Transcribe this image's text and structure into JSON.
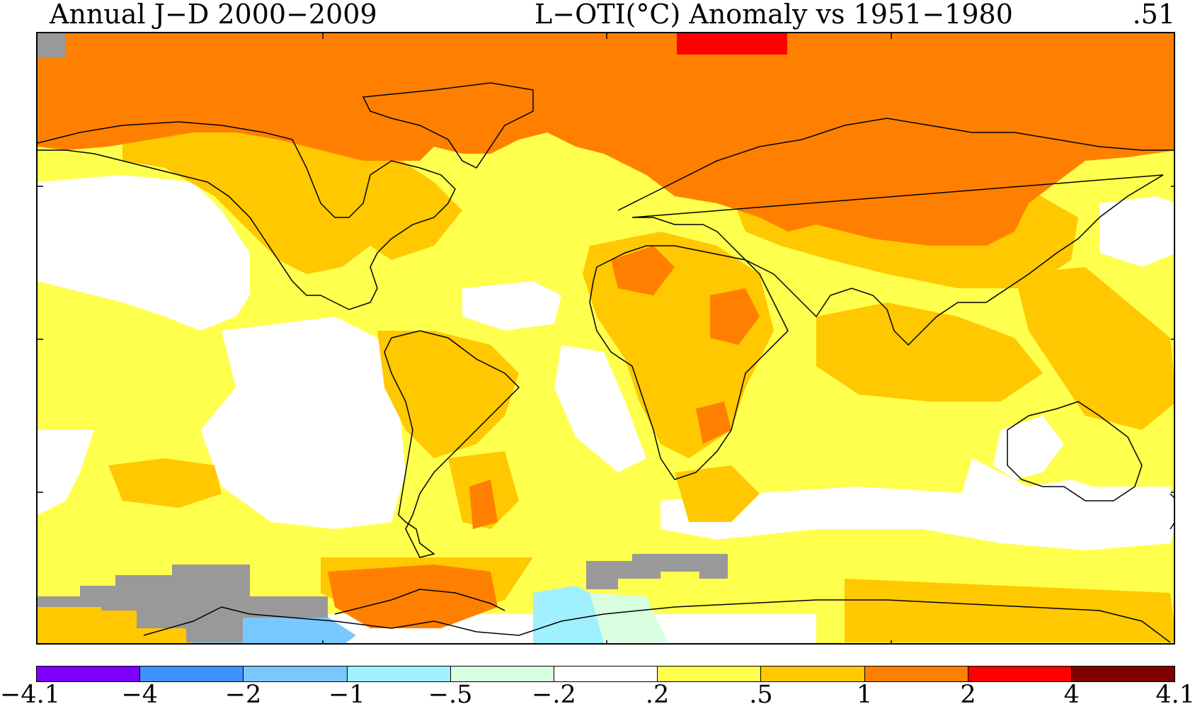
{
  "title": {
    "left": "Annual J-D 2000-2009",
    "center": "L-OTI(°C) Anomaly vs 1951-1980",
    "global_mean": ".51"
  },
  "colorbar": {
    "bins": [
      {
        "from": "-4.1",
        "to": "-4",
        "color": "#8000ff"
      },
      {
        "from": "-4",
        "to": "-2",
        "color": "#4090ff"
      },
      {
        "from": "-2",
        "to": "-1",
        "color": "#78c8ff"
      },
      {
        "from": "-1",
        "to": "-.5",
        "color": "#a0f0ff"
      },
      {
        "from": "-.5",
        "to": "-.2",
        "color": "#d8ffe0"
      },
      {
        "from": "-.2",
        "to": ".2",
        "color": "#ffffff"
      },
      {
        "from": ".2",
        "to": ".5",
        "color": "#ffff4d"
      },
      {
        "from": ".5",
        "to": "1",
        "color": "#ffc800"
      },
      {
        "from": "1",
        "to": "2",
        "color": "#ff8000"
      },
      {
        "from": "2",
        "to": "4",
        "color": "#ff0000"
      },
      {
        "from": "4",
        "to": "4.1",
        "color": "#800000"
      }
    ],
    "labels": [
      "-4.1",
      "-4",
      "-2",
      "-1",
      "-.5",
      "-.2",
      ".2",
      ".5",
      "1",
      "2",
      "4",
      "4.1"
    ],
    "missing_color": "#999999"
  },
  "colors": {
    "coastline": "#000000",
    "frame": "#000000"
  }
}
